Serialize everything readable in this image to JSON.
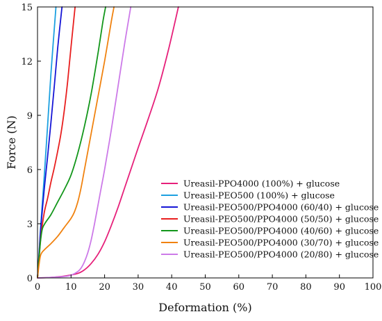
{
  "chart_data": {
    "type": "line",
    "xlabel": "Deformation (%)",
    "ylabel": "Force (N)",
    "xlim": [
      0,
      100
    ],
    "ylim": [
      0,
      15
    ],
    "xticks": [
      0,
      10,
      20,
      30,
      40,
      50,
      60,
      70,
      80,
      90,
      100
    ],
    "yticks": [
      0,
      3,
      6,
      9,
      12,
      15
    ],
    "grid": false,
    "legend_position": "bottom-right",
    "series": [
      {
        "name": "Ureasil-PPO4000 (100%) + glucose",
        "color": "#e6207a",
        "x": [
          0,
          4,
          8,
          12,
          14,
          16,
          18,
          20,
          22,
          24,
          26,
          28,
          30,
          33,
          36,
          39,
          42
        ],
        "y": [
          0,
          0.03,
          0.1,
          0.25,
          0.45,
          0.8,
          1.3,
          2.0,
          2.9,
          3.9,
          5.0,
          6.1,
          7.2,
          8.8,
          10.5,
          12.6,
          15
        ]
      },
      {
        "name": "Ureasil-PEO500 (100%) + glucose",
        "color": "#1ca0e0",
        "x": [
          0,
          0.5,
          1,
          2,
          3,
          4,
          5.5
        ],
        "y": [
          0,
          1.5,
          3.0,
          5.6,
          8.4,
          11.3,
          15
        ]
      },
      {
        "name": "Ureasil-PEO500/PPO4000 (60/40) + glucose",
        "color": "#1515d6",
        "x": [
          0,
          0.5,
          1,
          2,
          3,
          4,
          5,
          6,
          7.3
        ],
        "y": [
          0,
          1.4,
          2.8,
          4.9,
          6.7,
          8.6,
          10.6,
          12.7,
          15
        ]
      },
      {
        "name": "Ureasil-PEO500/PPO4000 (50/50) + glucose",
        "color": "#e81e1e",
        "x": [
          0,
          0.5,
          1,
          2,
          3,
          4,
          5,
          6,
          7,
          8,
          9,
          10,
          11.2
        ],
        "y": [
          0,
          1.2,
          2.3,
          3.6,
          4.4,
          5.3,
          6.1,
          7.0,
          8.0,
          9.3,
          10.9,
          12.8,
          15
        ]
      },
      {
        "name": "Ureasil-PEO500/PPO4000 (40/60) + glucose",
        "color": "#12961a",
        "x": [
          0,
          0.5,
          1,
          1.5,
          2.5,
          4,
          6,
          8,
          10,
          12,
          14,
          16,
          18,
          19.5,
          20.3
        ],
        "y": [
          0,
          1.2,
          2.2,
          2.75,
          3.1,
          3.5,
          4.2,
          4.9,
          5.7,
          6.9,
          8.4,
          10.2,
          12.4,
          14.2,
          15
        ]
      },
      {
        "name": "Ureasil-PEO500/PPO4000 (30/70) + glucose",
        "color": "#f0820f",
        "x": [
          0,
          0.5,
          1,
          2,
          4,
          6,
          8,
          10,
          11,
          12,
          13,
          14,
          16,
          18,
          20,
          22,
          22.8
        ],
        "y": [
          0,
          0.8,
          1.3,
          1.55,
          1.9,
          2.3,
          2.8,
          3.3,
          3.65,
          4.2,
          5.0,
          6.0,
          8.0,
          10.0,
          12.0,
          14.2,
          15
        ]
      },
      {
        "name": "Ureasil-PEO500/PPO4000 (20/80) + glucose",
        "color": "#cc7ae8",
        "x": [
          0,
          4,
          8,
          10,
          12,
          13,
          14,
          15,
          16,
          17,
          18,
          19,
          20,
          22,
          24,
          26,
          27.8
        ],
        "y": [
          0,
          0.03,
          0.08,
          0.15,
          0.35,
          0.55,
          0.9,
          1.4,
          2.1,
          3.0,
          4.0,
          5.0,
          6.0,
          8.2,
          10.6,
          13.0,
          15
        ]
      }
    ]
  }
}
